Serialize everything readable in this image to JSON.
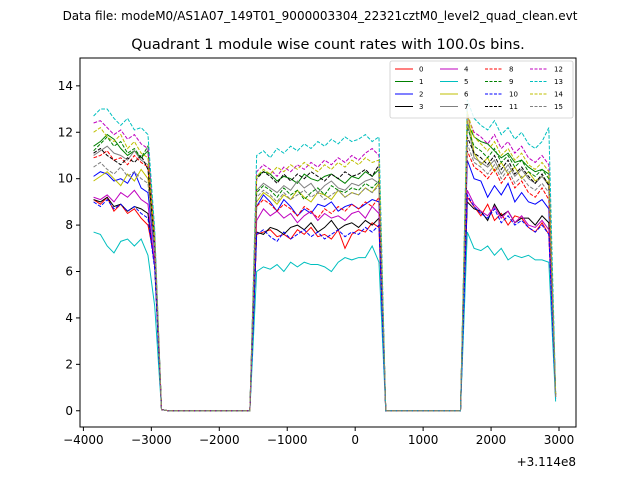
{
  "chart_data": {
    "type": "line",
    "suptitle": "Data file: modeM0/AS1A07_149T01_9000003304_22321cztM0_level2_quad_clean.evt",
    "title": "Quadrant 1 module wise count rates with 100.0s bins.",
    "xlabel": "",
    "ylabel": "",
    "x_offset_label": "+3.114e8",
    "xlim": [
      -4050,
      3250
    ],
    "ylim": [
      -0.7,
      15.2
    ],
    "xticks": [
      -4000,
      -3000,
      -2000,
      -1000,
      0,
      1000,
      2000,
      3000
    ],
    "xtick_labels": [
      "−4000",
      "−3000",
      "−2000",
      "−1000",
      "0",
      "1000",
      "2000",
      "3000"
    ],
    "yticks": [
      0,
      2,
      4,
      6,
      8,
      10,
      12,
      14
    ],
    "ytick_labels": [
      "0",
      "2",
      "4",
      "6",
      "8",
      "10",
      "12",
      "14"
    ],
    "grid": false,
    "legend_position": "top-right",
    "x": [
      -3850,
      -3750,
      -3650,
      -3550,
      -3450,
      -3350,
      -3250,
      -3150,
      -3050,
      -2950,
      -2850,
      -2750,
      -2650,
      -2550,
      -2450,
      -2350,
      -2250,
      -2150,
      -2050,
      -1950,
      -1850,
      -1750,
      -1650,
      -1550,
      -1450,
      -1350,
      -1250,
      -1150,
      -1050,
      -950,
      -850,
      -750,
      -650,
      -550,
      -450,
      -350,
      -250,
      -150,
      -50,
      50,
      150,
      250,
      350,
      450,
      550,
      650,
      750,
      850,
      950,
      1050,
      1150,
      1250,
      1350,
      1450,
      1550,
      1650,
      1750,
      1850,
      1950,
      2050,
      2150,
      2250,
      2350,
      2450,
      2550,
      2650,
      2750,
      2850,
      2950
    ],
    "series": [
      {
        "name": "0",
        "color": "#ff0000",
        "dash": "solid",
        "values": [
          9.1,
          8.9,
          9.2,
          8.6,
          8.9,
          8.5,
          8.7,
          8.3,
          8.0,
          6.5,
          0.05,
          0,
          0,
          0,
          0,
          0,
          0,
          0,
          0,
          0,
          0,
          0,
          0,
          0,
          7.6,
          7.7,
          7.8,
          7.5,
          7.6,
          7.4,
          7.8,
          7.6,
          7.9,
          7.5,
          7.6,
          7.4,
          7.8,
          7.0,
          7.6,
          7.8,
          7.7,
          8.1,
          7.9,
          0,
          0,
          0,
          0,
          0,
          0,
          0,
          0,
          0,
          0,
          0,
          0,
          9.2,
          8.8,
          8.4,
          8.9,
          8.2,
          8.5,
          8.0,
          8.4,
          8.3,
          7.9,
          7.7,
          8.1,
          7.6,
          0.6
        ]
      },
      {
        "name": "1",
        "color": "#008000",
        "dash": "solid",
        "values": [
          11.4,
          11.6,
          11.9,
          11.7,
          11.3,
          11.0,
          11.2,
          10.9,
          11.2,
          7.0,
          0.05,
          0,
          0,
          0,
          0,
          0,
          0,
          0,
          0,
          0,
          0,
          0,
          0,
          0,
          10.1,
          10.3,
          10.2,
          9.9,
          10.1,
          10.0,
          9.8,
          10.2,
          10.0,
          9.9,
          10.1,
          10.2,
          10.0,
          9.8,
          10.1,
          10.0,
          10.3,
          10.1,
          10.4,
          0,
          0,
          0,
          0,
          0,
          0,
          0,
          0,
          0,
          0,
          0,
          0,
          12.4,
          11.8,
          11.6,
          11.5,
          11.2,
          10.9,
          11.1,
          10.7,
          10.8,
          10.5,
          10.3,
          10.4,
          10.2,
          0.7
        ]
      },
      {
        "name": "2",
        "color": "#0000ff",
        "dash": "solid",
        "values": [
          10.1,
          10.3,
          10.2,
          9.9,
          10.0,
          9.8,
          10.3,
          9.6,
          9.4,
          6.8,
          0.05,
          0,
          0,
          0,
          0,
          0,
          0,
          0,
          0,
          0,
          0,
          0,
          0,
          0,
          8.8,
          9.3,
          9.0,
          8.6,
          9.1,
          8.8,
          8.4,
          8.7,
          8.5,
          8.9,
          8.8,
          9.0,
          8.6,
          8.8,
          8.9,
          8.7,
          8.9,
          9.1,
          9.0,
          0,
          0,
          0,
          0,
          0,
          0,
          0,
          0,
          0,
          0,
          0,
          0,
          10.8,
          10.0,
          9.9,
          9.2,
          9.7,
          9.3,
          9.8,
          9.0,
          9.4,
          9.0,
          8.9,
          9.1,
          8.7,
          0.5
        ]
      },
      {
        "name": "3",
        "color": "#000000",
        "dash": "solid",
        "values": [
          9.1,
          9.0,
          9.2,
          8.8,
          8.9,
          8.6,
          8.8,
          8.7,
          8.5,
          6.2,
          0.05,
          0,
          0,
          0,
          0,
          0,
          0,
          0,
          0,
          0,
          0,
          0,
          0,
          0,
          7.7,
          7.6,
          7.9,
          7.8,
          7.6,
          7.9,
          8.0,
          7.8,
          8.1,
          7.7,
          7.9,
          8.2,
          7.8,
          8.0,
          8.1,
          7.9,
          8.2,
          8.0,
          8.3,
          0,
          0,
          0,
          0,
          0,
          0,
          0,
          0,
          0,
          0,
          0,
          0,
          9.0,
          8.7,
          8.6,
          8.2,
          8.9,
          8.4,
          8.6,
          8.1,
          8.3,
          8.3,
          8.0,
          8.4,
          8.1,
          0.6
        ]
      },
      {
        "name": "4",
        "color": "#bf00bf",
        "dash": "solid",
        "values": [
          9.2,
          9.1,
          9.3,
          9.0,
          9.4,
          9.2,
          9.5,
          9.1,
          8.9,
          6.3,
          0.05,
          0,
          0,
          0,
          0,
          0,
          0,
          0,
          0,
          0,
          0,
          0,
          0,
          0,
          8.2,
          8.7,
          8.4,
          8.6,
          8.3,
          8.5,
          8.1,
          8.4,
          8.6,
          8.2,
          8.5,
          8.3,
          8.4,
          8.2,
          8.5,
          8.6,
          8.3,
          8.8,
          8.5,
          0,
          0,
          0,
          0,
          0,
          0,
          0,
          0,
          0,
          0,
          0,
          0,
          9.5,
          8.9,
          8.6,
          8.4,
          8.8,
          8.3,
          8.6,
          8.1,
          8.4,
          8.0,
          7.9,
          8.2,
          7.8,
          0.6
        ]
      },
      {
        "name": "5",
        "color": "#00bfbf",
        "dash": "solid",
        "values": [
          7.7,
          7.6,
          7.1,
          6.8,
          7.3,
          7.4,
          7.1,
          7.4,
          6.7,
          4.5,
          0.05,
          0,
          0,
          0,
          0,
          0,
          0,
          0,
          0,
          0,
          0,
          0,
          0,
          0,
          6.0,
          6.2,
          6.1,
          6.3,
          6.0,
          6.4,
          6.2,
          6.4,
          6.3,
          6.3,
          6.2,
          6.0,
          6.4,
          6.6,
          6.5,
          6.6,
          6.6,
          7.1,
          6.4,
          0,
          0,
          0,
          0,
          0,
          0,
          0,
          0,
          0,
          0,
          0,
          0,
          7.7,
          7.0,
          6.9,
          7.1,
          6.7,
          7.0,
          6.5,
          6.7,
          6.6,
          6.7,
          6.5,
          6.5,
          6.4,
          0.4
        ]
      },
      {
        "name": "6",
        "color": "#bfbf00",
        "dash": "solid",
        "values": [
          9.9,
          10.1,
          10.3,
          10.0,
          9.7,
          10.2,
          9.9,
          10.4,
          10.0,
          7.0,
          0.05,
          0,
          0,
          0,
          0,
          0,
          0,
          0,
          0,
          0,
          0,
          0,
          0,
          0,
          9.0,
          9.4,
          9.2,
          8.9,
          9.3,
          9.1,
          9.5,
          9.2,
          9.0,
          9.4,
          9.3,
          9.1,
          9.5,
          9.2,
          9.4,
          9.3,
          9.6,
          9.4,
          9.8,
          0,
          0,
          0,
          0,
          0,
          0,
          0,
          0,
          0,
          0,
          0,
          0,
          12.9,
          11.1,
          10.6,
          10.9,
          10.3,
          10.7,
          10.2,
          10.5,
          10.0,
          10.3,
          9.9,
          10.1,
          9.8,
          0.6
        ]
      },
      {
        "name": "7",
        "color": "#808080",
        "dash": "solid",
        "values": [
          11.0,
          11.2,
          11.4,
          11.1,
          11.0,
          10.8,
          11.2,
          10.8,
          10.6,
          7.0,
          0.05,
          0,
          0,
          0,
          0,
          0,
          0,
          0,
          0,
          0,
          0,
          0,
          0,
          0,
          9.5,
          9.8,
          9.6,
          9.4,
          9.7,
          9.5,
          9.9,
          9.6,
          9.8,
          9.4,
          9.7,
          9.9,
          9.6,
          9.5,
          9.8,
          9.7,
          9.9,
          10.0,
          9.8,
          0,
          0,
          0,
          0,
          0,
          0,
          0,
          0,
          0,
          0,
          0,
          0,
          12.5,
          10.9,
          10.7,
          10.5,
          10.8,
          10.2,
          10.6,
          10.1,
          10.4,
          10.0,
          9.8,
          10.1,
          9.7,
          0.7
        ]
      },
      {
        "name": "8",
        "color": "#ff0000",
        "dash": "dashed",
        "values": [
          10.9,
          11.0,
          11.2,
          10.8,
          10.9,
          10.6,
          11.0,
          10.7,
          10.5,
          7.2,
          0.05,
          0,
          0,
          0,
          0,
          0,
          0,
          0,
          0,
          0,
          0,
          0,
          0,
          0,
          8.8,
          9.1,
          8.9,
          8.6,
          8.9,
          8.7,
          8.4,
          8.8,
          8.6,
          8.3,
          8.7,
          8.5,
          8.8,
          8.6,
          8.9,
          8.7,
          9.0,
          8.8,
          9.2,
          0,
          0,
          0,
          0,
          0,
          0,
          0,
          0,
          0,
          0,
          0,
          0,
          11.2,
          10.5,
          10.3,
          10.0,
          10.4,
          9.8,
          10.2,
          9.6,
          9.9,
          9.4,
          9.2,
          9.6,
          9.1,
          0.7
        ]
      },
      {
        "name": "9",
        "color": "#008000",
        "dash": "dashed",
        "values": [
          11.2,
          11.5,
          11.8,
          11.4,
          11.6,
          11.1,
          11.3,
          10.9,
          11.4,
          7.3,
          0.05,
          0,
          0,
          0,
          0,
          0,
          0,
          0,
          0,
          0,
          0,
          0,
          0,
          0,
          9.4,
          9.7,
          9.5,
          9.2,
          9.6,
          9.3,
          9.5,
          9.1,
          9.4,
          9.6,
          9.3,
          9.7,
          9.5,
          9.4,
          9.6,
          9.5,
          9.8,
          9.6,
          9.9,
          0,
          0,
          0,
          0,
          0,
          0,
          0,
          0,
          0,
          0,
          0,
          0,
          12.2,
          11.4,
          11.2,
          10.9,
          11.3,
          10.7,
          11.0,
          10.5,
          10.8,
          10.3,
          10.1,
          10.4,
          10.0,
          0.7
        ]
      },
      {
        "name": "10",
        "color": "#0000ff",
        "dash": "dashed",
        "values": [
          9.0,
          8.8,
          9.1,
          8.7,
          8.9,
          8.6,
          8.8,
          8.5,
          8.3,
          6.1,
          0.05,
          0,
          0,
          0,
          0,
          0,
          0,
          0,
          0,
          0,
          0,
          0,
          0,
          0,
          7.6,
          7.8,
          7.5,
          7.3,
          7.7,
          7.4,
          7.6,
          7.8,
          7.5,
          7.7,
          7.4,
          7.6,
          7.8,
          7.5,
          7.7,
          7.6,
          7.9,
          7.7,
          8.0,
          0,
          0,
          0,
          0,
          0,
          0,
          0,
          0,
          0,
          0,
          0,
          0,
          9.3,
          8.8,
          8.5,
          8.3,
          8.7,
          8.1,
          8.4,
          8.0,
          8.2,
          7.9,
          7.7,
          8.0,
          7.6,
          0.6
        ]
      },
      {
        "name": "11",
        "color": "#000000",
        "dash": "dashed",
        "values": [
          11.1,
          11.3,
          11.0,
          10.8,
          10.6,
          10.9,
          10.7,
          11.0,
          10.4,
          7.1,
          0.05,
          0,
          0,
          0,
          0,
          0,
          0,
          0,
          0,
          0,
          0,
          0,
          0,
          0,
          10.0,
          10.3,
          10.1,
          9.8,
          10.2,
          9.9,
          10.2,
          10.0,
          10.3,
          10.1,
          9.9,
          10.2,
          10.0,
          10.3,
          10.1,
          10.2,
          10.4,
          10.1,
          10.6,
          0,
          0,
          0,
          0,
          0,
          0,
          0,
          0,
          0,
          0,
          0,
          0,
          11.8,
          11.1,
          10.9,
          10.6,
          11.0,
          10.4,
          10.8,
          10.2,
          10.5,
          10.1,
          9.8,
          10.2,
          9.7,
          0.7
        ]
      },
      {
        "name": "12",
        "color": "#bf00bf",
        "dash": "dashed",
        "values": [
          12.4,
          12.5,
          12.2,
          11.9,
          12.1,
          11.7,
          11.9,
          11.5,
          11.3,
          7.6,
          0.05,
          0,
          0,
          0,
          0,
          0,
          0,
          0,
          0,
          0,
          0,
          0,
          0,
          0,
          10.3,
          10.6,
          10.4,
          10.1,
          10.5,
          10.3,
          10.6,
          10.4,
          10.7,
          10.5,
          10.8,
          10.6,
          10.9,
          10.7,
          11.0,
          10.8,
          11.1,
          11.3,
          11.0,
          0,
          0,
          0,
          0,
          0,
          0,
          0,
          0,
          0,
          0,
          0,
          0,
          12.7,
          12.0,
          11.8,
          11.5,
          11.9,
          11.3,
          11.6,
          11.1,
          11.4,
          10.9,
          10.7,
          11.0,
          10.6,
          0.8
        ]
      },
      {
        "name": "13",
        "color": "#00bfbf",
        "dash": "dashed",
        "values": [
          12.7,
          13.0,
          13.0,
          12.6,
          12.3,
          12.6,
          12.1,
          12.2,
          11.9,
          7.8,
          0.05,
          0,
          0,
          0,
          0,
          0,
          0,
          0,
          0,
          0,
          0,
          0,
          0,
          0,
          11.0,
          11.2,
          10.9,
          11.3,
          11.1,
          11.4,
          11.2,
          11.5,
          11.3,
          11.6,
          11.4,
          11.7,
          11.5,
          11.8,
          11.6,
          11.7,
          11.9,
          11.6,
          11.8,
          0,
          0,
          0,
          0,
          0,
          0,
          0,
          0,
          0,
          0,
          0,
          0,
          13.4,
          12.6,
          12.3,
          12.1,
          12.5,
          11.9,
          12.2,
          11.7,
          12.0,
          11.5,
          11.3,
          11.6,
          12.2,
          0.8
        ]
      },
      {
        "name": "14",
        "color": "#bfbf00",
        "dash": "dashed",
        "values": [
          12.0,
          12.2,
          11.8,
          11.6,
          11.9,
          11.3,
          11.6,
          11.1,
          10.9,
          7.4,
          0.05,
          0,
          0,
          0,
          0,
          0,
          0,
          0,
          0,
          0,
          0,
          0,
          0,
          0,
          10.1,
          10.4,
          10.2,
          10.5,
          10.3,
          10.6,
          10.4,
          10.7,
          10.5,
          10.3,
          10.6,
          10.4,
          10.7,
          10.5,
          10.8,
          10.6,
          10.9,
          10.7,
          10.8,
          0,
          0,
          0,
          0,
          0,
          0,
          0,
          0,
          0,
          0,
          0,
          0,
          12.9,
          11.8,
          11.5,
          11.2,
          11.6,
          11.0,
          11.3,
          10.8,
          11.1,
          10.6,
          10.4,
          10.7,
          10.3,
          0.7
        ]
      },
      {
        "name": "15",
        "color": "#808080",
        "dash": "dashed",
        "values": [
          10.5,
          10.7,
          10.4,
          10.2,
          10.5,
          10.1,
          10.3,
          10.0,
          9.8,
          6.9,
          0.05,
          0,
          0,
          0,
          0,
          0,
          0,
          0,
          0,
          0,
          0,
          0,
          0,
          0,
          9.2,
          9.5,
          9.3,
          9.0,
          9.4,
          9.1,
          9.3,
          9.5,
          9.2,
          9.4,
          9.1,
          9.3,
          9.5,
          9.2,
          9.4,
          9.3,
          9.6,
          9.4,
          9.7,
          0,
          0,
          0,
          0,
          0,
          0,
          0,
          0,
          0,
          0,
          0,
          0,
          11.5,
          10.7,
          10.5,
          10.2,
          10.6,
          10.0,
          10.4,
          9.8,
          10.1,
          9.7,
          9.5,
          9.8,
          9.4,
          0.6
        ]
      }
    ]
  }
}
